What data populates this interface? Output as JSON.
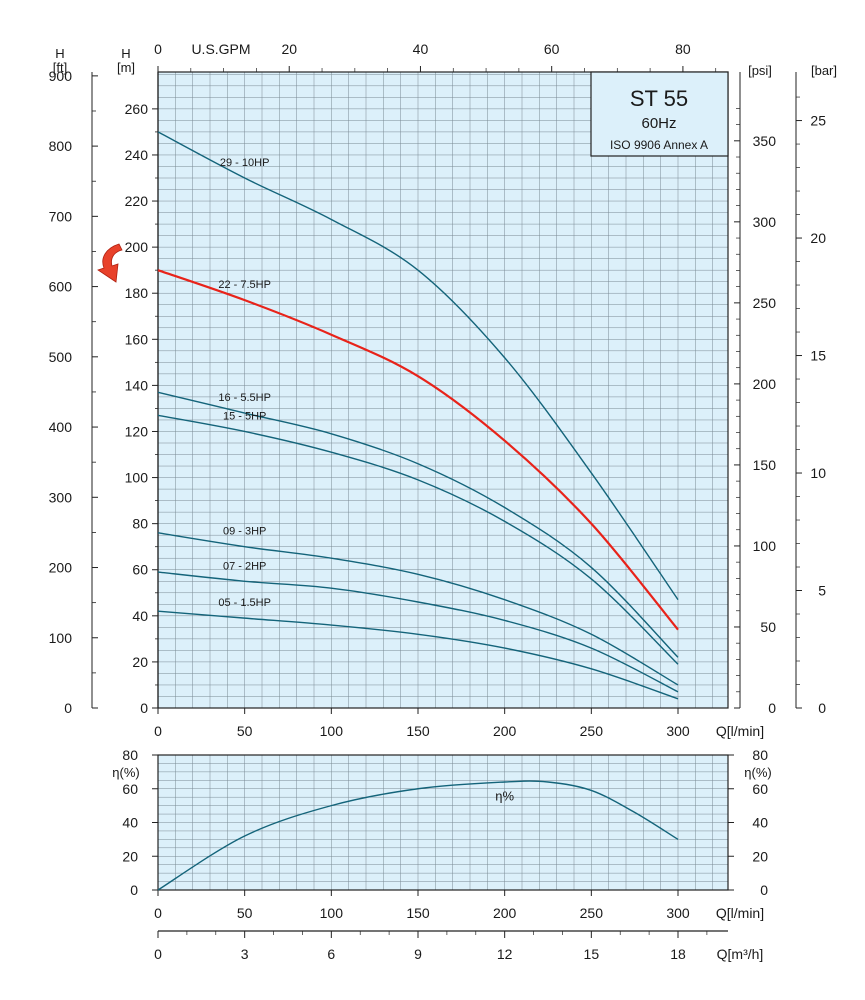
{
  "colors": {
    "plot_bg": "#dcf0fa",
    "grid": "#7a8a94",
    "curve": "#14647a",
    "highlight": "#e8231a",
    "arrow": "#e8412a",
    "box_bg": "#dcf0fa"
  },
  "infobox": {
    "title": "ST 55",
    "freq": "60Hz",
    "standard": "ISO 9906 Annex A"
  },
  "chart_data": [
    {
      "type": "line",
      "name": "head",
      "left_axis_m_label": [
        "H",
        "[m]"
      ],
      "left_axis_ft_label": [
        "H",
        "[ft]"
      ],
      "top_axis_label": "U.S.GPM",
      "right_axis_psi_label": "[psi]",
      "right_axis_bar_label": "[bar]",
      "xlabel": "Q[l/min]",
      "xlim": [
        0,
        300
      ],
      "ylim": [
        0,
        265
      ],
      "x_ticks": [
        "0",
        "50",
        "100",
        "150",
        "200",
        "250",
        "300"
      ],
      "y_ticks_m": [
        "0",
        "20",
        "40",
        "60",
        "80",
        "100",
        "120",
        "140",
        "160",
        "180",
        "200",
        "220",
        "240",
        "260"
      ],
      "y_ticks_ft": [
        "0",
        "100",
        "200",
        "300",
        "400",
        "500",
        "600",
        "700",
        "800",
        "900"
      ],
      "gpm_ticks": [
        "0",
        "20",
        "40",
        "60",
        "80"
      ],
      "psi_ticks": [
        "0",
        "50",
        "100",
        "150",
        "200",
        "250",
        "300",
        "350"
      ],
      "bar_ticks": [
        "0",
        "5",
        "10",
        "15",
        "20",
        "25"
      ],
      "grid": true,
      "highlight_marker_value_m": 190,
      "series": [
        {
          "name": "29 - 10HP",
          "highlight": false,
          "x": [
            0,
            50,
            100,
            150,
            200,
            250,
            300
          ],
          "y": [
            250,
            230,
            212,
            190,
            152,
            102,
            47
          ]
        },
        {
          "name": "22 - 7.5HP",
          "highlight": true,
          "x": [
            0,
            50,
            100,
            150,
            200,
            250,
            300
          ],
          "y": [
            190,
            177,
            162,
            144,
            116,
            80,
            34
          ]
        },
        {
          "name": "16 - 5.5HP",
          "highlight": false,
          "x": [
            0,
            50,
            100,
            150,
            200,
            250,
            300
          ],
          "y": [
            137,
            128,
            119,
            106,
            87,
            61,
            22
          ]
        },
        {
          "name": "15 - 5HP",
          "highlight": false,
          "x": [
            0,
            50,
            100,
            150,
            200,
            250,
            300
          ],
          "y": [
            127,
            120,
            111,
            99,
            81,
            56,
            19
          ]
        },
        {
          "name": "09 - 3HP",
          "highlight": false,
          "x": [
            0,
            50,
            100,
            150,
            200,
            250,
            300
          ],
          "y": [
            76,
            70,
            65,
            58,
            47,
            32,
            10
          ]
        },
        {
          "name": "07 - 2HP",
          "highlight": false,
          "x": [
            0,
            50,
            100,
            150,
            200,
            250,
            300
          ],
          "y": [
            59,
            55,
            52,
            46,
            38,
            26,
            7
          ]
        },
        {
          "name": "05 - 1.5HP",
          "highlight": false,
          "x": [
            0,
            50,
            100,
            150,
            200,
            250,
            300
          ],
          "y": [
            42,
            39,
            36,
            32,
            26,
            17,
            4
          ]
        }
      ]
    },
    {
      "type": "line",
      "name": "efficiency",
      "ylabel": "η(%)",
      "xlabel": "Q[l/min]",
      "xlim": [
        0,
        300
      ],
      "ylim": [
        0,
        80
      ],
      "x_ticks": [
        "0",
        "50",
        "100",
        "150",
        "200",
        "250",
        "300"
      ],
      "y_ticks": [
        "0",
        "20",
        "40",
        "60",
        "80"
      ],
      "grid": true,
      "series": [
        {
          "name": "η%",
          "x": [
            0,
            50,
            100,
            150,
            200,
            225,
            250,
            275,
            300
          ],
          "y": [
            0,
            32,
            50,
            60,
            64,
            64,
            59,
            46,
            30
          ]
        }
      ]
    },
    {
      "type": "axis",
      "name": "flow-m3h",
      "xlabel": "Q[m³/h]",
      "ticks": [
        "0",
        "3",
        "6",
        "9",
        "12",
        "15",
        "18"
      ]
    }
  ]
}
